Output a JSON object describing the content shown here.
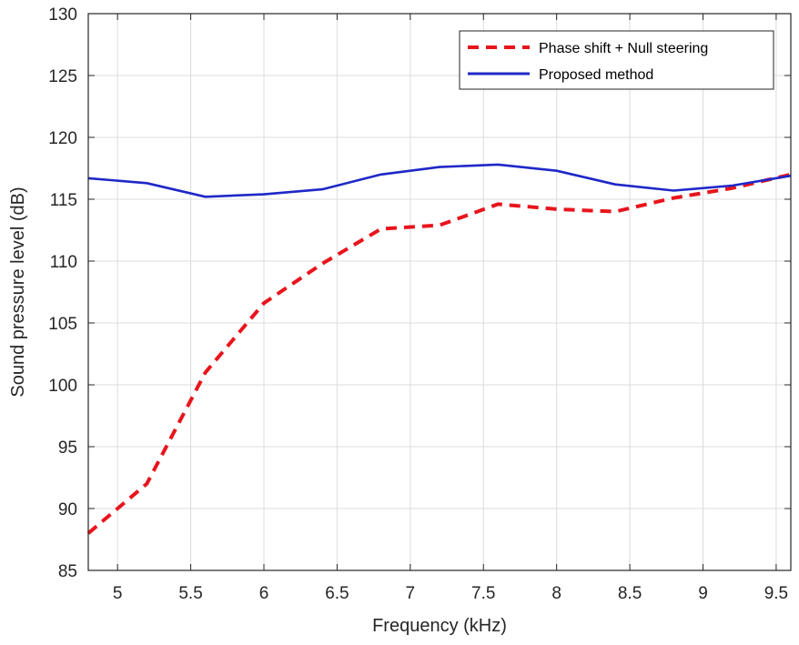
{
  "chart_data": {
    "type": "line",
    "title": "",
    "xlabel": "Frequency (kHz)",
    "ylabel": "Sound pressure level (dB)",
    "xlim": [
      4.8,
      9.6
    ],
    "ylim": [
      85,
      130
    ],
    "xticks": [
      5,
      5.5,
      6,
      6.5,
      7,
      7.5,
      8,
      8.5,
      9,
      9.5
    ],
    "xtick_labels": [
      "5",
      "5.5",
      "6",
      "6.5",
      "7",
      "7.5",
      "8",
      "8.5",
      "9",
      "9.5"
    ],
    "yticks": [
      85,
      90,
      95,
      100,
      105,
      110,
      115,
      120,
      125,
      130
    ],
    "ytick_labels": [
      "85",
      "90",
      "95",
      "100",
      "105",
      "110",
      "115",
      "120",
      "125",
      "130"
    ],
    "grid": true,
    "legend_position": "top-right",
    "series": [
      {
        "name": "Phase shift + Null steering",
        "color": "#e8141c",
        "style": "dashed",
        "x": [
          4.8,
          5.2,
          5.6,
          6.0,
          6.4,
          6.8,
          7.2,
          7.6,
          8.0,
          8.4,
          8.8,
          9.2,
          9.6
        ],
        "values": [
          88.0,
          92.0,
          101.0,
          106.6,
          109.8,
          112.6,
          112.9,
          114.6,
          114.2,
          114.0,
          115.1,
          115.9,
          117.0
        ]
      },
      {
        "name": "Proposed method",
        "color": "#1f28c8",
        "style": "solid",
        "x": [
          4.8,
          5.2,
          5.6,
          6.0,
          6.4,
          6.8,
          7.2,
          7.6,
          8.0,
          8.4,
          8.8,
          9.2,
          9.6
        ],
        "values": [
          116.7,
          116.3,
          115.2,
          115.4,
          115.8,
          117.0,
          117.6,
          117.8,
          117.3,
          116.2,
          115.7,
          116.1,
          116.9
        ]
      }
    ]
  }
}
